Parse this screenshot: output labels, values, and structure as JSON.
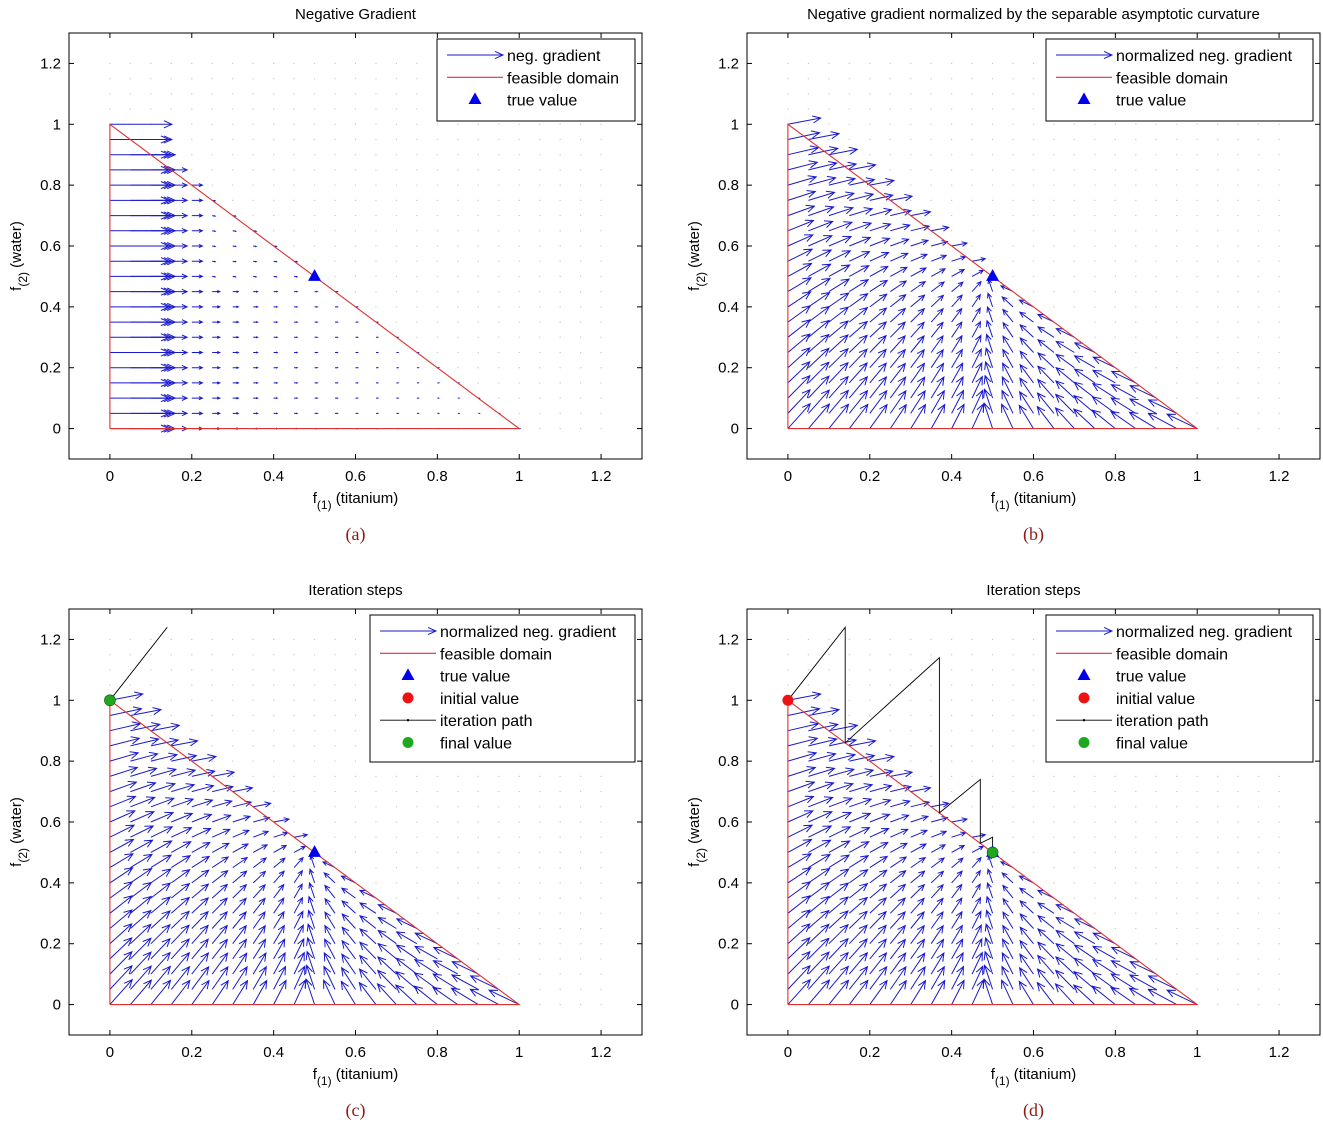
{
  "colors": {
    "gradient": "#1a1acc",
    "domain": "#e03030",
    "true_value": "#0000ee",
    "initial_value": "#ee1111",
    "final_value": "#1fa81f",
    "path": "#000000",
    "caption": "#8b1a1a"
  },
  "chart_data": [
    {
      "type": "quiver",
      "title": "Negative Gradient",
      "caption": "(a)",
      "xlabel_main": "f",
      "xlabel_sub": "(1)",
      "xlabel_rest": " (titanium)",
      "ylabel_main": "f",
      "ylabel_sub": "(2)",
      "ylabel_rest": " (water)",
      "xlim": [
        -0.1,
        1.3
      ],
      "ylim": [
        -0.1,
        1.3
      ],
      "xticks": [
        "0",
        "0.2",
        "0.4",
        "0.6",
        "0.8",
        "1",
        "1.2"
      ],
      "yticks": [
        "0",
        "0.2",
        "0.4",
        "0.6",
        "0.8",
        "1",
        "1.2"
      ],
      "legend": [
        "neg. gradient",
        "feasible domain",
        "true value"
      ],
      "legend_position": "top-right",
      "feasible_domain": [
        [
          0,
          0
        ],
        [
          1,
          0
        ],
        [
          0,
          1
        ],
        [
          0,
          0
        ]
      ],
      "true_value": [
        0.5,
        0.5
      ],
      "field": "raw-gradient"
    },
    {
      "type": "quiver",
      "title": "Negative gradient normalized by the separable asymptotic curvature",
      "caption": "(b)",
      "xlabel_main": "f",
      "xlabel_sub": "(1)",
      "xlabel_rest": " (titanium)",
      "ylabel_main": "f",
      "ylabel_sub": "(2)",
      "ylabel_rest": " (water)",
      "xlim": [
        -0.1,
        1.3
      ],
      "ylim": [
        -0.1,
        1.3
      ],
      "xticks": [
        "0",
        "0.2",
        "0.4",
        "0.6",
        "0.8",
        "1",
        "1.2"
      ],
      "yticks": [
        "0",
        "0.2",
        "0.4",
        "0.6",
        "0.8",
        "1",
        "1.2"
      ],
      "legend": [
        "normalized neg. gradient",
        "feasible domain",
        "true value"
      ],
      "legend_position": "top-right",
      "feasible_domain": [
        [
          0,
          0
        ],
        [
          1,
          0
        ],
        [
          0,
          1
        ],
        [
          0,
          0
        ]
      ],
      "true_value": [
        0.5,
        0.5
      ],
      "field": "normalized"
    },
    {
      "type": "quiver",
      "title": "Iteration steps",
      "caption": "(c)",
      "xlabel_main": "f",
      "xlabel_sub": "(1)",
      "xlabel_rest": " (titanium)",
      "ylabel_main": "f",
      "ylabel_sub": "(2)",
      "ylabel_rest": " (water)",
      "xlim": [
        -0.1,
        1.3
      ],
      "ylim": [
        -0.1,
        1.3
      ],
      "xticks": [
        "0",
        "0.2",
        "0.4",
        "0.6",
        "0.8",
        "1",
        "1.2"
      ],
      "yticks": [
        "0",
        "0.2",
        "0.4",
        "0.6",
        "0.8",
        "1",
        "1.2"
      ],
      "legend": [
        "normalized neg. gradient",
        "feasible domain",
        "true value",
        "initial value",
        "iteration path",
        "final value"
      ],
      "legend_position": "top-right",
      "feasible_domain": [
        [
          0,
          0
        ],
        [
          1,
          0
        ],
        [
          0,
          1
        ],
        [
          0,
          0
        ]
      ],
      "true_value": [
        0.5,
        0.5
      ],
      "initial_value": [
        0,
        1
      ],
      "final_value": [
        0,
        1
      ],
      "iteration_path": [
        [
          0,
          1
        ],
        [
          0.14,
          1.24
        ],
        [
          0,
          1
        ]
      ],
      "field": "normalized"
    },
    {
      "type": "quiver",
      "title": "Iteration steps",
      "caption": "(d)",
      "xlabel_main": "f",
      "xlabel_sub": "(1)",
      "xlabel_rest": " (titanium)",
      "ylabel_main": "f",
      "ylabel_sub": "(2)",
      "ylabel_rest": " (water)",
      "xlim": [
        -0.1,
        1.3
      ],
      "ylim": [
        -0.1,
        1.3
      ],
      "xticks": [
        "0",
        "0.2",
        "0.4",
        "0.6",
        "0.8",
        "1",
        "1.2"
      ],
      "yticks": [
        "0",
        "0.2",
        "0.4",
        "0.6",
        "0.8",
        "1",
        "1.2"
      ],
      "legend": [
        "normalized neg. gradient",
        "feasible domain",
        "true value",
        "initial value",
        "iteration path",
        "final value"
      ],
      "legend_position": "top-right",
      "feasible_domain": [
        [
          0,
          0
        ],
        [
          1,
          0
        ],
        [
          0,
          1
        ],
        [
          0,
          0
        ]
      ],
      "true_value": [
        0.5,
        0.5
      ],
      "initial_value": [
        0,
        1
      ],
      "final_value": [
        0.5,
        0.5
      ],
      "iteration_path": [
        [
          0,
          1
        ],
        [
          0.14,
          1.24
        ],
        [
          0.14,
          0.86
        ],
        [
          0.37,
          1.14
        ],
        [
          0.37,
          0.63
        ],
        [
          0.47,
          0.74
        ],
        [
          0.47,
          0.53
        ],
        [
          0.5,
          0.55
        ],
        [
          0.5,
          0.5
        ]
      ],
      "field": "normalized"
    }
  ]
}
